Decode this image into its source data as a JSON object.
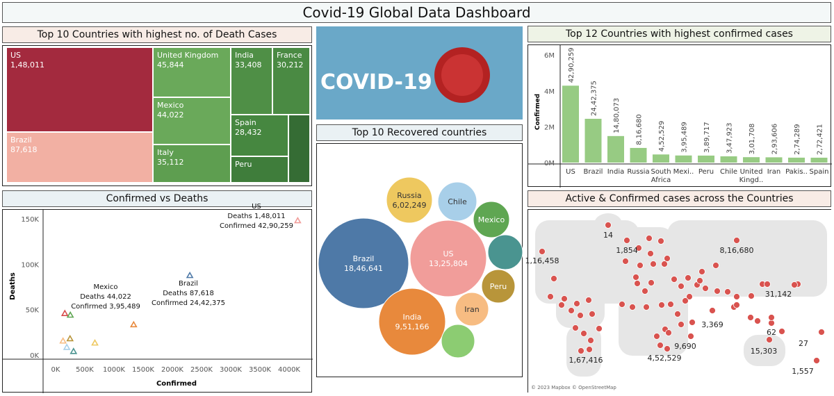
{
  "title": "Covid-19 Global Data Dashboard",
  "treemap": {
    "title": "Top 10 Countries with highest no. of Death Cases",
    "cells": [
      {
        "name": "US",
        "value": "1,48,011",
        "color": "#a32a3e"
      },
      {
        "name": "Brazil",
        "value": "87,618",
        "color": "#f2b0a3"
      },
      {
        "name": "United Kingdom",
        "value": "45,844",
        "color": "#6aa95a"
      },
      {
        "name": "Mexico",
        "value": "44,022",
        "color": "#6aa95a"
      },
      {
        "name": "Italy",
        "value": "35,112",
        "color": "#5e9e50"
      },
      {
        "name": "India",
        "value": "33,408",
        "color": "#4f8f46"
      },
      {
        "name": "France",
        "value": "30,212",
        "color": "#4a8a43"
      },
      {
        "name": "Spain",
        "value": "28,432",
        "color": "#468740"
      },
      {
        "name": "Peru",
        "value": "",
        "color": "#3f7d3b"
      },
      {
        "name": "",
        "value": "",
        "color": "#356c34"
      }
    ]
  },
  "banner": {
    "text": "COVID-19",
    "bg": "#6aa8c8"
  },
  "bubbles": {
    "title": "Top 10 Recovered countries",
    "items": [
      {
        "name": "Brazil",
        "value": "18,46,641",
        "color": "#4e79a7"
      },
      {
        "name": "US",
        "value": "13,25,804",
        "color": "#f19d9a"
      },
      {
        "name": "India",
        "value": "9,51,166",
        "color": "#e8893c"
      },
      {
        "name": "Russia",
        "value": "6,02,249",
        "color": "#eec85f"
      },
      {
        "name": "Chile",
        "value": "",
        "color": "#a8cfe9"
      },
      {
        "name": "Mexico",
        "value": "",
        "color": "#5fa652"
      },
      {
        "name": "",
        "value": "",
        "color": "#4a9490"
      },
      {
        "name": "Peru",
        "value": "",
        "color": "#b8953a"
      },
      {
        "name": "Iran",
        "value": "",
        "color": "#f7bc82"
      },
      {
        "name": "",
        "value": "",
        "color": "#8ccc72"
      }
    ]
  },
  "bar": {
    "title": "Top 12 Countries with highest confirmed cases",
    "ylabel": "Confirmed",
    "yticks": [
      "6M",
      "4M",
      "2M",
      "0M"
    ],
    "ylim": [
      0,
      6000000
    ],
    "color": "#97cb83",
    "categories": [
      "US",
      "Brazil",
      "India",
      "Russia",
      "South Africa",
      "Mexi..",
      "Peru",
      "Chile",
      "United Kingd..",
      "Iran",
      "Pakis..",
      "Spain"
    ],
    "labels": [
      "42,90,259",
      "24,42,375",
      "14,80,073",
      "8,16,680",
      "4,52,529",
      "3,95,489",
      "3,89,717",
      "3,47,923",
      "3,01,708",
      "2,93,606",
      "2,74,289",
      "2,72,421"
    ],
    "values": [
      4290259,
      2442375,
      1480073,
      816680,
      452529,
      395489,
      389717,
      347923,
      301708,
      293606,
      274289,
      272421
    ]
  },
  "scatter": {
    "title": "Confirmed vs Deaths",
    "xlabel": "Confirmed",
    "ylabel": "Deaths",
    "xticks": [
      "0K",
      "500K",
      "1000K",
      "1500K",
      "2000K",
      "2500K",
      "3000K",
      "3500K",
      "4000K"
    ],
    "yticks": [
      "150K",
      "100K",
      "50K",
      "0K"
    ],
    "points": [
      {
        "x": 4290,
        "y": 148,
        "color": "#f19d9a"
      },
      {
        "x": 2442,
        "y": 87.6,
        "color": "#4e79a7"
      },
      {
        "x": 1480,
        "y": 33.4,
        "color": "#e8893c"
      },
      {
        "x": 816,
        "y": 13.3,
        "color": "#eec85f"
      },
      {
        "x": 301,
        "y": 45.8,
        "color": "#d84b4b"
      },
      {
        "x": 395,
        "y": 44,
        "color": "#5fa652"
      },
      {
        "x": 270,
        "y": 15.5,
        "color": "#f7bc82"
      },
      {
        "x": 390,
        "y": 18,
        "color": "#b8953a"
      },
      {
        "x": 335,
        "y": 8.5,
        "color": "#a8cfe9"
      },
      {
        "x": 450,
        "y": 4,
        "color": "#4a9490"
      }
    ],
    "annotations": [
      {
        "lines": [
          "US",
          "Deaths 1,48,011",
          "Confirmed 42,90,259"
        ]
      },
      {
        "lines": [
          "Brazil",
          "Deaths 87,618",
          "Confirmed 24,42,375"
        ]
      },
      {
        "lines": [
          "Mexico",
          "Deaths 44,022",
          "Confirmed 3,95,489"
        ]
      }
    ]
  },
  "map": {
    "title": "Active & Confirmed cases across the Countries",
    "attribution": "© 2023 Mapbox © OpenStreetMap",
    "dot_color": "#d9534f",
    "labels": [
      "14",
      "1,854",
      "1,16,458",
      "8,16,680",
      "31,142",
      "3,369",
      "62",
      "27",
      "9,690",
      "4,52,529",
      "1,67,416",
      "15,303",
      "1,557"
    ]
  }
}
